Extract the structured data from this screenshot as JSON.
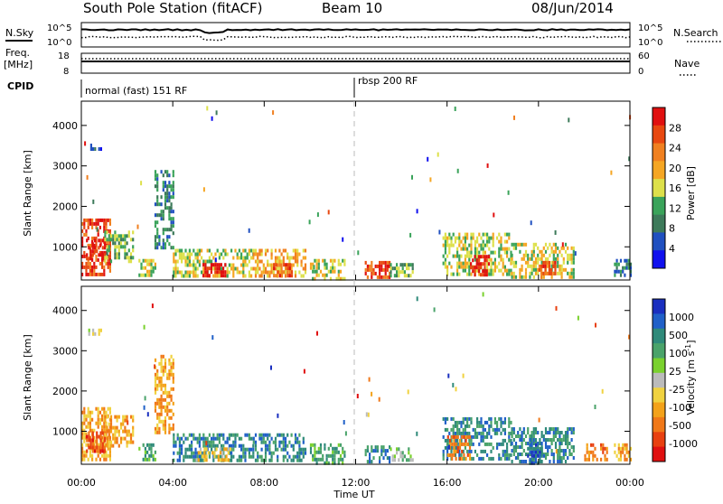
{
  "header": {
    "station": "South Pole Station (fitACF)",
    "beam": "Beam 10",
    "date": "08/Jun/2014"
  },
  "top_panels": {
    "nsky_label": "N.Sky",
    "nsearch_label": "N.Search",
    "nsky_ticks": [
      "10^5",
      "10^0"
    ],
    "nsearch_ticks": [
      "10^5",
      "10^0"
    ],
    "freq_label_line1": "Freq.",
    "freq_label_line2": "[MHz]",
    "freq_ticks": [
      "18",
      "8"
    ],
    "nave_label": "Nave",
    "nave_ticks": [
      "60",
      "0"
    ],
    "cpid_label": "CPID",
    "cpid_segments": [
      {
        "text": "normal (fast) 151 RF",
        "start_hour": 0,
        "end_hour": 12
      },
      {
        "text": "rbsp 200 RF",
        "start_hour": 12,
        "end_hour": 24
      }
    ]
  },
  "colors": {
    "power_scale": [
      "#1010ee",
      "#2050c0",
      "#3d7a5a",
      "#3aa35a",
      "#dde04a",
      "#f5a623",
      "#f08020",
      "#e84810",
      "#e01010"
    ],
    "velocity_scale": [
      "#1a2fbf",
      "#2060c8",
      "#2f8a7a",
      "#4aa36a",
      "#7ad12e",
      "#bbbbbb",
      "#f0d240",
      "#f3a21a",
      "#f07818",
      "#e84010",
      "#e01010"
    ]
  },
  "chart_data": [
    {
      "type": "heatmap",
      "name": "power",
      "ylabel": "Slant Range [km]",
      "xlim_hours": [
        0,
        24
      ],
      "ylim_km": [
        180,
        4600
      ],
      "yticks": [
        "1000",
        "2000",
        "3000",
        "4000"
      ],
      "colorbar_label": "Power [dB]",
      "colorbar_ticks": [
        "4",
        "8",
        "12",
        "16",
        "20",
        "24",
        "28"
      ],
      "regions": [
        {
          "t0": 0.0,
          "t1": 1.3,
          "r0": 300,
          "r1": 1700,
          "level": 7
        },
        {
          "t0": 0.2,
          "t1": 1.0,
          "r0": 700,
          "r1": 1200,
          "level": 8
        },
        {
          "t0": 1.0,
          "t1": 2.3,
          "r0": 600,
          "r1": 1400,
          "level": 3
        },
        {
          "t0": 0.3,
          "t1": 0.9,
          "r0": 3450,
          "r1": 3550,
          "level": 1
        },
        {
          "t0": 3.2,
          "t1": 4.0,
          "r0": 1000,
          "r1": 2900,
          "level": 2
        },
        {
          "t0": 2.5,
          "t1": 3.2,
          "r0": 300,
          "r1": 700,
          "level": 4
        },
        {
          "t0": 4.0,
          "t1": 7.5,
          "r0": 250,
          "r1": 950,
          "level": 4
        },
        {
          "t0": 5.3,
          "t1": 6.3,
          "r0": 250,
          "r1": 600,
          "level": 8
        },
        {
          "t0": 7.5,
          "t1": 9.8,
          "r0": 250,
          "r1": 950,
          "level": 5
        },
        {
          "t0": 8.3,
          "t1": 9.2,
          "r0": 250,
          "r1": 600,
          "level": 7
        },
        {
          "t0": 10.0,
          "t1": 11.5,
          "r0": 250,
          "r1": 700,
          "level": 4
        },
        {
          "t0": 12.4,
          "t1": 13.5,
          "r0": 250,
          "r1": 650,
          "level": 7
        },
        {
          "t0": 13.5,
          "t1": 14.5,
          "r0": 300,
          "r1": 600,
          "level": 3
        },
        {
          "t0": 15.8,
          "t1": 18.8,
          "r0": 300,
          "r1": 1350,
          "level": 4
        },
        {
          "t0": 17.0,
          "t1": 17.8,
          "r0": 300,
          "r1": 800,
          "level": 8
        },
        {
          "t0": 18.8,
          "t1": 21.5,
          "r0": 250,
          "r1": 1100,
          "level": 4
        },
        {
          "t0": 20.0,
          "t1": 20.7,
          "r0": 250,
          "r1": 650,
          "level": 7
        },
        {
          "t0": 23.3,
          "t1": 24.0,
          "r0": 300,
          "r1": 700,
          "level": 2
        }
      ]
    },
    {
      "type": "heatmap",
      "name": "velocity",
      "ylabel": "Slant Range [km]",
      "xlim_hours": [
        0,
        24
      ],
      "ylim_km": [
        180,
        4600
      ],
      "yticks": [
        "1000",
        "2000",
        "3000",
        "4000"
      ],
      "colorbar_label": "Velocity [m s",
      "colorbar_label_sup": "-1",
      "colorbar_label_end": "]",
      "colorbar_ticks": [
        "1000",
        "500",
        "100",
        "25",
        "-25",
        "-100",
        "-500",
        "-1000"
      ],
      "xlabel": "Time UT",
      "xticks": [
        "00:00",
        "04:00",
        "08:00",
        "12:00",
        "16:00",
        "20:00",
        "00:00"
      ],
      "regions": [
        {
          "t0": 0.0,
          "t1": 1.3,
          "r0": 300,
          "r1": 1600,
          "level": 7
        },
        {
          "t0": 0.2,
          "t1": 1.0,
          "r0": 500,
          "r1": 1000,
          "level": 9
        },
        {
          "t0": 1.0,
          "t1": 2.3,
          "r0": 600,
          "r1": 1400,
          "level": 7
        },
        {
          "t0": 0.3,
          "t1": 0.9,
          "r0": 3450,
          "r1": 3550,
          "level": 5
        },
        {
          "t0": 3.2,
          "t1": 4.0,
          "r0": 1000,
          "r1": 2900,
          "level": 7
        },
        {
          "t0": 2.5,
          "t1": 3.2,
          "r0": 300,
          "r1": 700,
          "level": 3
        },
        {
          "t0": 4.0,
          "t1": 7.5,
          "r0": 250,
          "r1": 950,
          "level": 2
        },
        {
          "t0": 5.0,
          "t1": 6.5,
          "r0": 250,
          "r1": 600,
          "level": 6
        },
        {
          "t0": 7.5,
          "t1": 9.8,
          "r0": 250,
          "r1": 950,
          "level": 2
        },
        {
          "t0": 10.0,
          "t1": 11.5,
          "r0": 250,
          "r1": 700,
          "level": 3
        },
        {
          "t0": 12.4,
          "t1": 13.5,
          "r0": 250,
          "r1": 650,
          "level": 2
        },
        {
          "t0": 13.5,
          "t1": 14.5,
          "r0": 300,
          "r1": 600,
          "level": 4
        },
        {
          "t0": 15.8,
          "t1": 18.8,
          "r0": 300,
          "r1": 1350,
          "level": 2
        },
        {
          "t0": 16.0,
          "t1": 17.0,
          "r0": 300,
          "r1": 900,
          "level": 8
        },
        {
          "t0": 18.8,
          "t1": 21.5,
          "r0": 250,
          "r1": 1100,
          "level": 2
        },
        {
          "t0": 19.5,
          "t1": 20.2,
          "r0": 250,
          "r1": 700,
          "level": 1
        },
        {
          "t0": 22.0,
          "t1": 23.0,
          "r0": 300,
          "r1": 700,
          "level": 8
        },
        {
          "t0": 23.3,
          "t1": 24.0,
          "r0": 300,
          "r1": 700,
          "level": 7
        }
      ]
    }
  ]
}
